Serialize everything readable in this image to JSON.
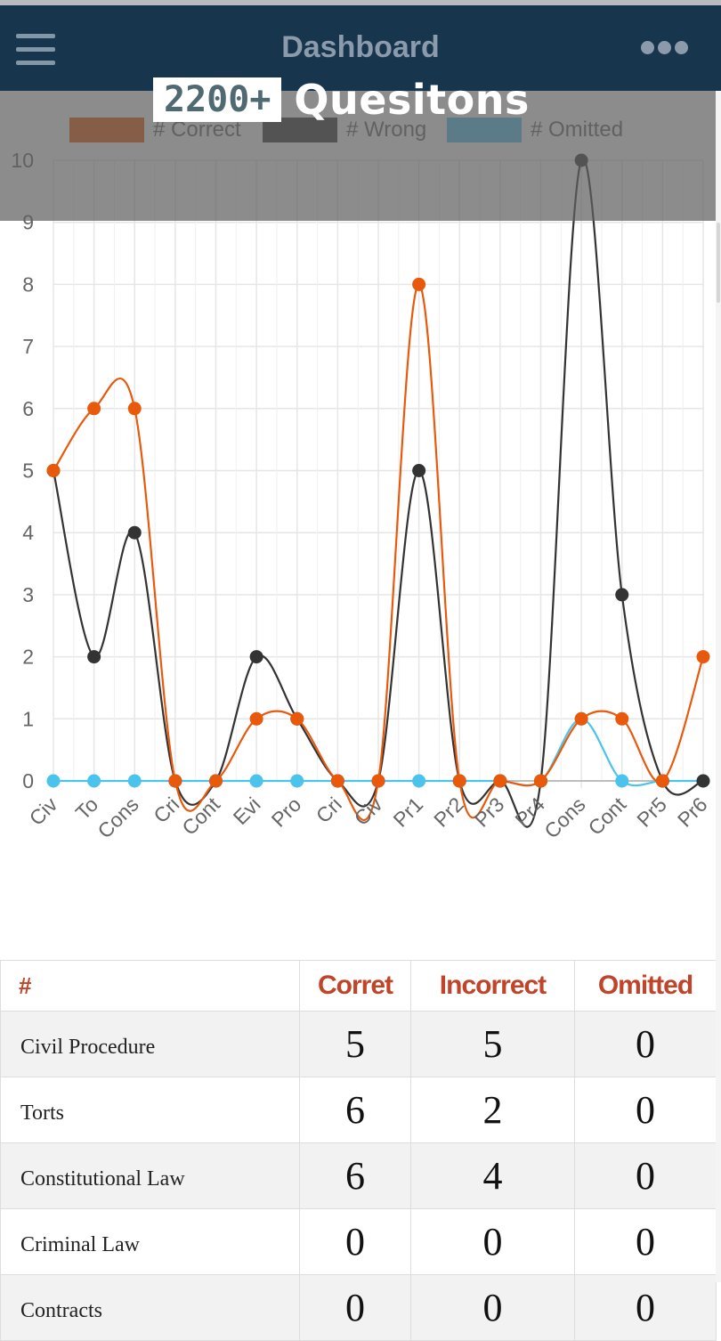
{
  "header": {
    "title": "Dashboard",
    "menu_icon": "hamburger-menu-icon",
    "more_icon": "more-dots-icon"
  },
  "promo": {
    "count": "2200+",
    "text": "Quesitons"
  },
  "chart_data": {
    "type": "line",
    "title": "",
    "xlabel": "",
    "ylabel": "",
    "ylim": [
      0,
      10
    ],
    "yticks": [
      0,
      1,
      2,
      3,
      4,
      5,
      6,
      7,
      8,
      9,
      10
    ],
    "categories": [
      "Civ",
      "To",
      "Cons",
      "Cri",
      "Cont",
      "Evi",
      "Pro",
      "Cri",
      "Civ",
      "Pr1",
      "Pr2",
      "Pr3",
      "Pr4",
      "Cons",
      "Cont",
      "Pr5",
      "Pr6"
    ],
    "legend_position": "top",
    "grid": true,
    "series": [
      {
        "name": "# Correct",
        "color": "#e8590c",
        "values": [
          5,
          6,
          6,
          0,
          0,
          1,
          1,
          0,
          0,
          8,
          0,
          0,
          0,
          1,
          1,
          0,
          2
        ]
      },
      {
        "name": "# Wrong",
        "color": "#333333",
        "values": [
          5,
          2,
          4,
          0,
          0,
          2,
          1,
          0,
          0,
          5,
          0,
          0,
          0,
          10,
          3,
          0,
          0
        ]
      },
      {
        "name": "# Omitted",
        "color": "#4cc3ec",
        "values": [
          0,
          0,
          0,
          0,
          0,
          0,
          0,
          0,
          0,
          0,
          0,
          0,
          0,
          1,
          0,
          0,
          0
        ]
      }
    ]
  },
  "table": {
    "headers": [
      "#",
      "Corret",
      "Incorrect",
      "Omitted"
    ],
    "rows": [
      {
        "subject": "Civil Procedure",
        "correct": "5",
        "incorrect": "5",
        "omitted": "0"
      },
      {
        "subject": "Torts",
        "correct": "6",
        "incorrect": "2",
        "omitted": "0"
      },
      {
        "subject": "Constitutional Law",
        "correct": "6",
        "incorrect": "4",
        "omitted": "0"
      },
      {
        "subject": "Criminal Law",
        "correct": "0",
        "incorrect": "0",
        "omitted": "0"
      },
      {
        "subject": "Contracts",
        "correct": "0",
        "incorrect": "0",
        "omitted": "0"
      }
    ]
  }
}
